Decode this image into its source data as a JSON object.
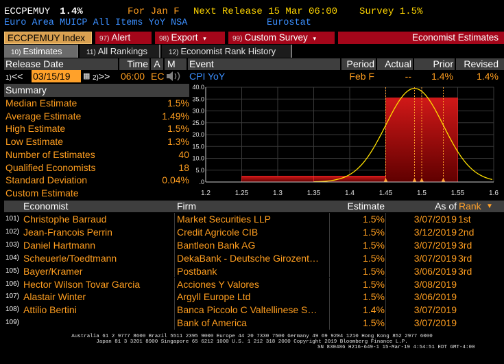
{
  "header": {
    "ticker": "ECCPEMUY",
    "value": "1.4%",
    "for_label": "For Jan F",
    "next_release": "Next Release 15 Mar 06:00",
    "survey": "Survey 1.5%",
    "description": "Euro Area MUICP All Items YoY NSA",
    "source": "Eurostat"
  },
  "actions": {
    "security": "ECCPEMUY Index",
    "alert_num": "97)",
    "alert": "Alert",
    "export_num": "98)",
    "export": "Export",
    "custom_num": "99)",
    "custom": "Custom Survey",
    "economist_estimates": "Economist Estimates",
    "dropdown_glyph": "▾"
  },
  "tabs": [
    {
      "num": "10)",
      "label": "Estimates",
      "active": true
    },
    {
      "num": "11)",
      "label": "All Rankings",
      "active": false
    },
    {
      "num": "12)",
      "label": "Economist Rank History",
      "active": false
    }
  ],
  "columns": {
    "release_date": "Release Date",
    "time": "Time",
    "a": "A",
    "m": "M",
    "event": "Event",
    "period": "Period",
    "actual": "Actual",
    "prior": "Prior",
    "revised": "Revised"
  },
  "release": {
    "prev_num": "1)",
    "prev": "<<",
    "date": "03/15/19",
    "next_num": "2)",
    "next": ">>",
    "time": "06:00",
    "ec": "EC",
    "event": "CPI YoY",
    "period": "Feb F",
    "actual": "--",
    "prior": "1.4%",
    "revised": "1.4%"
  },
  "summary": {
    "title": "Summary",
    "rows": [
      {
        "label": "Median Estimate",
        "value": "1.5%"
      },
      {
        "label": "Average Estimate",
        "value": "1.49%"
      },
      {
        "label": "High Estimate",
        "value": "1.5%"
      },
      {
        "label": "Low Estimate",
        "value": "1.3%"
      },
      {
        "label": "Number of Estimates",
        "value": "40"
      },
      {
        "label": "Qualified Economists",
        "value": "18"
      },
      {
        "label": "Standard Deviation",
        "value": "0.04%"
      },
      {
        "label": "Custom Estimate",
        "value": ""
      }
    ]
  },
  "chart_data": {
    "type": "bar",
    "bins": [
      {
        "from": 1.25,
        "to": 1.35,
        "value": 2.5
      },
      {
        "from": 1.35,
        "to": 1.45,
        "value": 2.5
      },
      {
        "from": 1.45,
        "to": 1.55,
        "value": 35.5
      }
    ],
    "curve_peak_x": 1.49,
    "curve_peak_y": 39.5,
    "curve_sd": 0.04,
    "markers": [
      1.45,
      1.49,
      1.5,
      1.53
    ],
    "xticks": [
      "1.2",
      "1.25",
      "1.3",
      "1.35",
      "1.4",
      "1.45",
      "1.5",
      "1.55",
      "1.6"
    ],
    "yticks": [
      "40.0",
      "35.0",
      "30.0",
      "25.0",
      "20.0",
      "15.0",
      "10.0",
      "5.0",
      ".0"
    ],
    "xlim": [
      1.2,
      1.6
    ],
    "ylim": [
      0,
      40
    ],
    "bar_color": "#b00000",
    "curve_color": "#ffe000"
  },
  "economists": {
    "headers": {
      "economist": "Economist",
      "firm": "Firm",
      "estimate": "Estimate",
      "asof": "As of",
      "rank": "Rank",
      "rank_arrow": "▼"
    },
    "rows": [
      {
        "idx": "101)",
        "name": "Christophe Barraud",
        "firm": "Market Securities LLP",
        "estimate": "1.5%",
        "asof": "3/07/2019",
        "rank": "1st"
      },
      {
        "idx": "102)",
        "name": "Jean-Francois Perrin",
        "firm": "Credit Agricole CIB",
        "estimate": "1.5%",
        "asof": "3/12/2019",
        "rank": "2nd"
      },
      {
        "idx": "103)",
        "name": "Daniel Hartmann",
        "firm": "Bantleon Bank AG",
        "estimate": "1.5%",
        "asof": "3/07/2019",
        "rank": "3rd"
      },
      {
        "idx": "104)",
        "name": "Scheuerle/Toedtmann",
        "firm": "DekaBank - Deutsche Girozent…",
        "estimate": "1.5%",
        "asof": "3/07/2019",
        "rank": "3rd"
      },
      {
        "idx": "105)",
        "name": "Bayer/Kramer",
        "firm": "Postbank",
        "estimate": "1.5%",
        "asof": "3/06/2019",
        "rank": "3rd"
      },
      {
        "idx": "106)",
        "name": "Hector Wilson Tovar Garcia",
        "firm": "Acciones Y Valores",
        "estimate": "1.5%",
        "asof": "3/08/2019",
        "rank": ""
      },
      {
        "idx": "107)",
        "name": "Alastair Winter",
        "firm": "Argyll Europe Ltd",
        "estimate": "1.5%",
        "asof": "3/06/2019",
        "rank": ""
      },
      {
        "idx": "108)",
        "name": "Attilio Bertini",
        "firm": "Banca Piccolo C Valtellinese S…",
        "estimate": "1.4%",
        "asof": "3/07/2019",
        "rank": ""
      },
      {
        "idx": "109)",
        "name": "",
        "firm": "Bank of America",
        "estimate": "1.5%",
        "asof": "3/07/2019",
        "rank": ""
      }
    ]
  },
  "footer": {
    "line1": "Australia 61 2 9777 8600 Brazil 5511 2395 9000 Europe 44 20 7330 7500 Germany 49 69 9204 1210 Hong Kong 852 2977 6000",
    "line2": "Japan 81 3 3201 8900       Singapore 65 6212 1000       U.S. 1 212 318 2000            Copyright 2019 Bloomberg Finance L.P.",
    "line3": "SN 830486 H216-649-1 15-Mar-19  4:54:51 EDT  GMT-4:00"
  }
}
